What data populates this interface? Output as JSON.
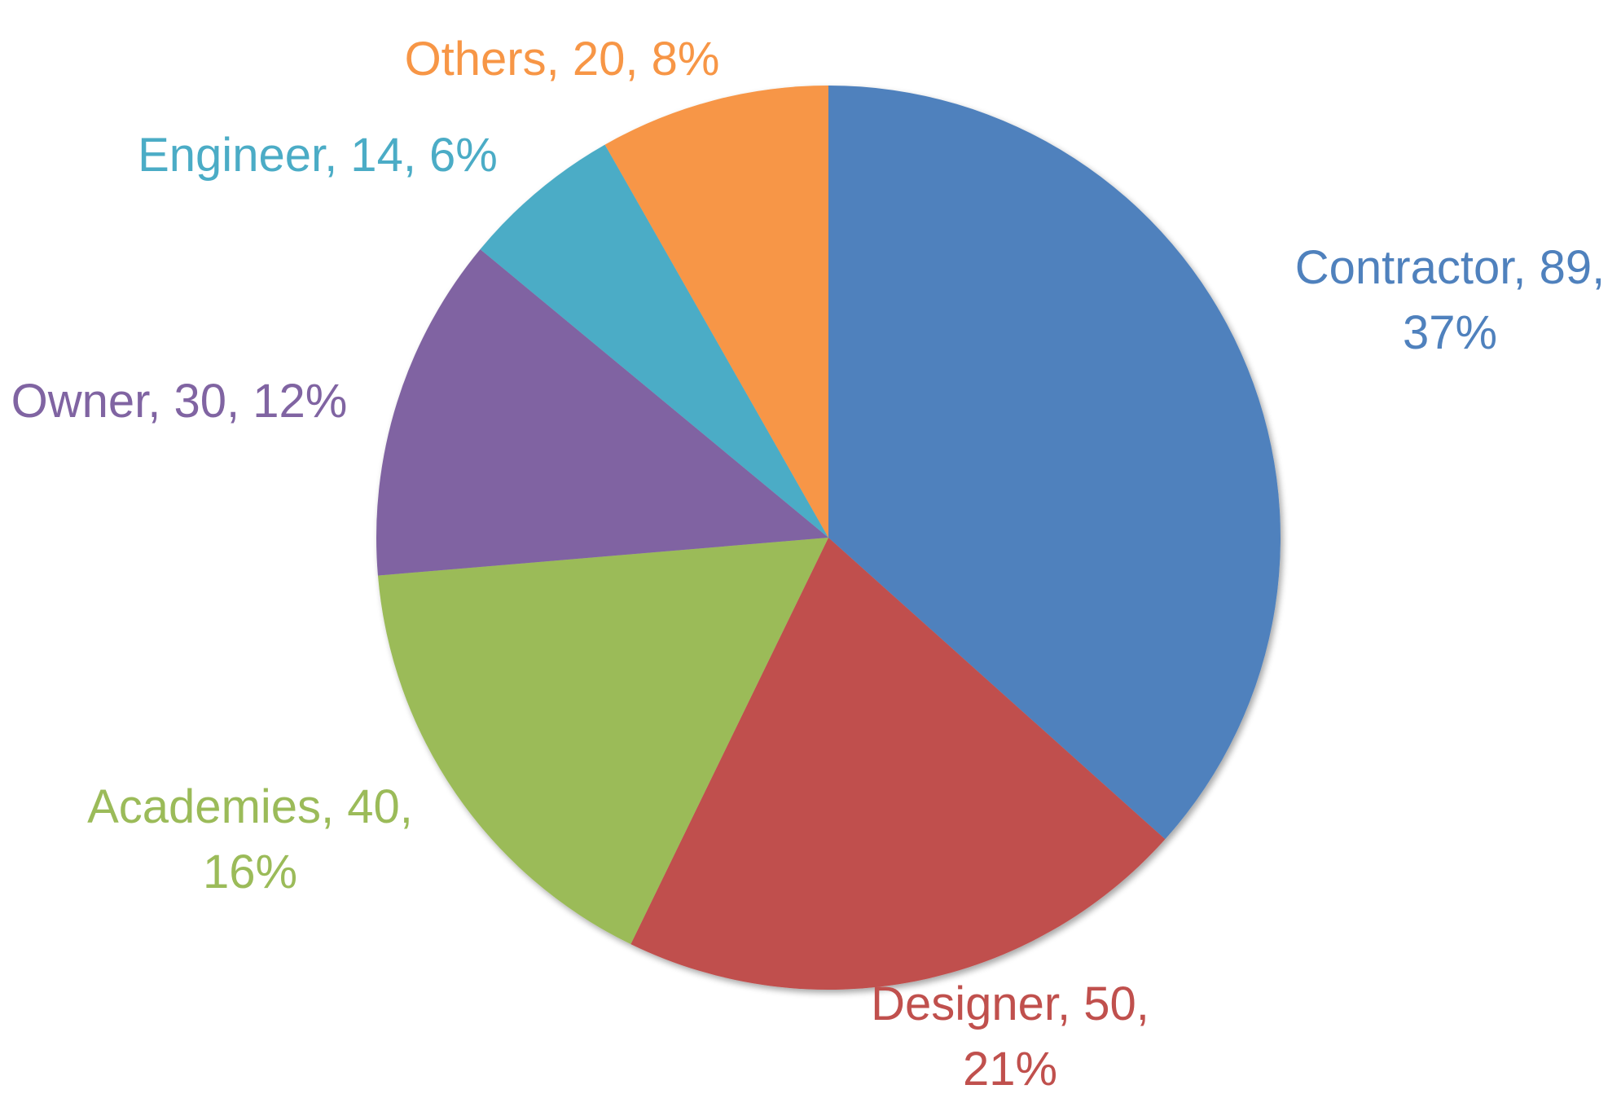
{
  "chart_data": {
    "type": "pie",
    "start": "12 o'clock",
    "direction": "clockwise",
    "slices": [
      {
        "name": "Contractor",
        "value": 89,
        "percent": "37%",
        "color": "#4F81BD",
        "label_lines": [
          "Contractor, 89,",
          "37%"
        ]
      },
      {
        "name": "Designer",
        "value": 50,
        "percent": "21%",
        "color": "#C0504D",
        "label_lines": [
          "Designer, 50,",
          "21%"
        ]
      },
      {
        "name": "Academies",
        "value": 40,
        "percent": "16%",
        "color": "#9BBB59",
        "label_lines": [
          "Academies, 40,",
          "16%"
        ]
      },
      {
        "name": "Owner",
        "value": 30,
        "percent": "12%",
        "color": "#8064A2",
        "label_lines": [
          "Owner, 30, 12%"
        ]
      },
      {
        "name": "Engineer",
        "value": 14,
        "percent": "6%",
        "color": "#4BACC6",
        "label_lines": [
          "Engineer, 14, 6%"
        ]
      },
      {
        "name": "Others",
        "value": 20,
        "percent": "8%",
        "color": "#F79646",
        "label_lines": [
          "Others, 20, 8%"
        ]
      }
    ]
  }
}
